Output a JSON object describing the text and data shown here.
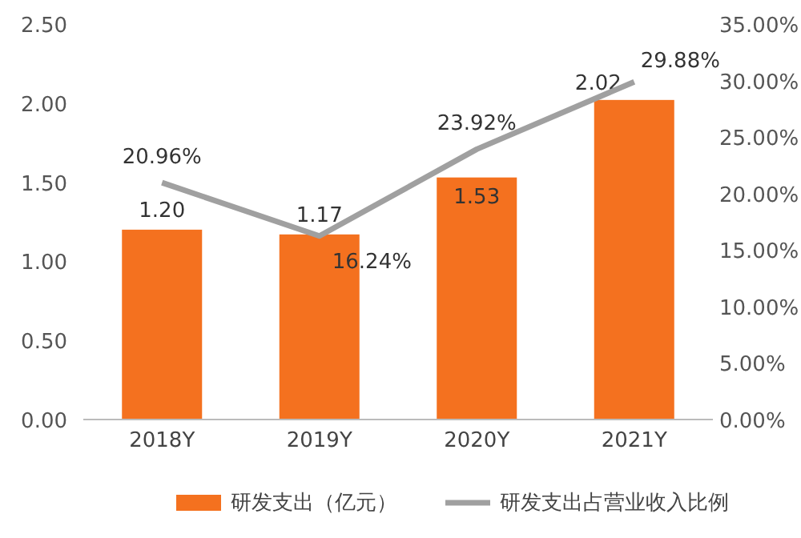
{
  "chart_data": {
    "type": "bar",
    "categories": [
      "2018Y",
      "2019Y",
      "2020Y",
      "2021Y"
    ],
    "series": [
      {
        "name": "研发支出（亿元）",
        "color": "#f4711f",
        "values": [
          1.2,
          1.17,
          1.53,
          2.02
        ],
        "value_labels": [
          "1.20",
          "1.17",
          "1.53",
          "2.02"
        ]
      },
      {
        "name": "研发支出占营业收入比例",
        "type": "line",
        "axis": "y2",
        "color": "#a0a0a0",
        "values": [
          20.96,
          16.24,
          23.92,
          29.88
        ],
        "value_labels": [
          "20.96%",
          "16.24%",
          "23.92%",
          "29.88%"
        ]
      }
    ],
    "ylim": [
      0,
      2.5
    ],
    "yticks": [
      {
        "value": 0,
        "label": "0.00"
      },
      {
        "value": 0.5,
        "label": "0.50"
      },
      {
        "value": 1,
        "label": "1.00"
      },
      {
        "value": 1.5,
        "label": "1.50"
      },
      {
        "value": 2,
        "label": "2.00"
      },
      {
        "value": 2.5,
        "label": "2.50"
      }
    ],
    "y2lim": [
      0,
      35
    ],
    "y2ticks": [
      {
        "value": 0,
        "label": "0.00%"
      },
      {
        "value": 5,
        "label": "5.00%"
      },
      {
        "value": 10,
        "label": "10.00%"
      },
      {
        "value": 15,
        "label": "15.00%"
      },
      {
        "value": 20,
        "label": "20.00%"
      },
      {
        "value": 25,
        "label": "25.00%"
      },
      {
        "value": 30,
        "label": "30.00%"
      },
      {
        "value": 35,
        "label": "35.00%"
      }
    ],
    "grid": false,
    "legend": "bottom"
  }
}
